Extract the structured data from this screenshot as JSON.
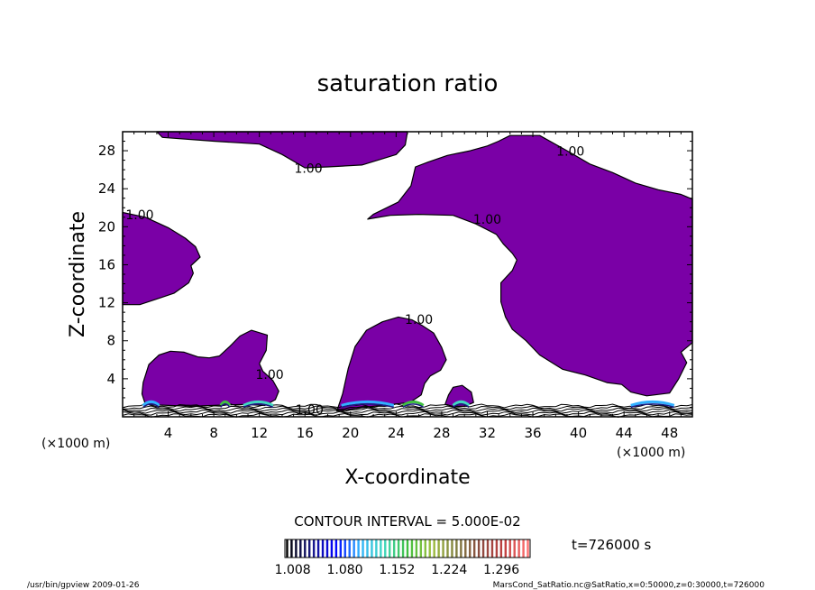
{
  "chart_data": {
    "type": "contour",
    "title": "saturation ratio",
    "xlabel": "X-coordinate",
    "ylabel": "Z-coordinate",
    "x_unit_left": "(×1000 m)",
    "x_unit_right": "(×1000 m)",
    "y_unit": "(×1000 m)",
    "xlim": [
      0,
      50
    ],
    "ylim": [
      0,
      30
    ],
    "x_ticks": [
      4,
      8,
      12,
      16,
      20,
      24,
      28,
      32,
      36,
      40,
      44,
      48
    ],
    "y_ticks": [
      4,
      8,
      12,
      16,
      20,
      24,
      28
    ],
    "contour_interval_text": "CONTOUR INTERVAL = 5.000E-02",
    "fill_color": "#7a00a6",
    "contour_labels": [
      {
        "text": "1.00",
        "x": 16.3,
        "z": 25.7
      },
      {
        "text": "1.00",
        "x": 39.3,
        "z": 27.5
      },
      {
        "text": "1.00",
        "x": 1.5,
        "z": 20.8
      },
      {
        "text": "1.00",
        "x": 32.0,
        "z": 20.3
      },
      {
        "text": "1.00",
        "x": 26.0,
        "z": 9.8
      },
      {
        "text": "1.00",
        "x": 12.9,
        "z": 4.0
      },
      {
        "text": "1.00",
        "x": 16.4,
        "z": 0.3
      }
    ],
    "purple_regions": [
      [
        [
          3,
          30
        ],
        [
          3.5,
          29.4
        ],
        [
          8,
          29
        ],
        [
          12,
          28.7
        ],
        [
          14,
          27.6
        ],
        [
          16,
          26.2
        ],
        [
          18,
          26.3
        ],
        [
          21,
          26.5
        ],
        [
          24,
          27.6
        ],
        [
          24.8,
          28.6
        ],
        [
          25,
          30
        ]
      ],
      [
        [
          0,
          21.5
        ],
        [
          2,
          21
        ],
        [
          4,
          19.9
        ],
        [
          5.5,
          18.8
        ],
        [
          6.4,
          17.9
        ],
        [
          6.8,
          16.8
        ],
        [
          6,
          15.9
        ],
        [
          6.2,
          15.1
        ],
        [
          5.8,
          14.1
        ],
        [
          4.5,
          13
        ],
        [
          3,
          12.4
        ],
        [
          1.5,
          11.8
        ],
        [
          0,
          11.8
        ]
      ],
      [
        [
          34,
          29.6
        ],
        [
          36.6,
          29.6
        ],
        [
          39,
          28
        ],
        [
          41,
          26.6
        ],
        [
          43,
          25.7
        ],
        [
          45,
          24.6
        ],
        [
          47,
          23.9
        ],
        [
          49,
          23.4
        ],
        [
          50,
          22.9
        ],
        [
          50,
          7.8
        ],
        [
          49,
          6.8
        ],
        [
          49.5,
          5.7
        ],
        [
          48.8,
          4
        ],
        [
          48,
          2.5
        ],
        [
          46,
          2.2
        ],
        [
          44.6,
          2.6
        ],
        [
          43.8,
          3.4
        ],
        [
          42.5,
          3.6
        ],
        [
          40.6,
          4.4
        ],
        [
          38.6,
          5
        ],
        [
          36.6,
          6.5
        ],
        [
          35.4,
          8
        ],
        [
          34.2,
          9.2
        ],
        [
          33.6,
          10.5
        ],
        [
          33.2,
          12.1
        ],
        [
          33.2,
          14.1
        ],
        [
          34.2,
          15.4
        ],
        [
          34.6,
          16.5
        ],
        [
          34.2,
          17.2
        ],
        [
          33.4,
          18.2
        ],
        [
          32.8,
          19.2
        ],
        [
          31,
          20.3
        ],
        [
          29,
          21.2
        ],
        [
          26,
          21.3
        ],
        [
          23.5,
          21.2
        ],
        [
          21.5,
          20.8
        ],
        [
          22,
          21.3
        ],
        [
          24.2,
          22.6
        ],
        [
          25.3,
          24.3
        ],
        [
          25.7,
          26.3
        ],
        [
          26.8,
          26.8
        ],
        [
          28.5,
          27.5
        ],
        [
          30.5,
          28
        ],
        [
          32,
          28.5
        ],
        [
          33,
          29
        ],
        [
          34,
          29.6
        ]
      ],
      [
        [
          2,
          1.3
        ],
        [
          1.7,
          2.4
        ],
        [
          1.8,
          3.6
        ],
        [
          2.3,
          5.5
        ],
        [
          3.2,
          6.5
        ],
        [
          4.2,
          6.9
        ],
        [
          5.4,
          6.8
        ],
        [
          6.6,
          6.3
        ],
        [
          7.6,
          6.2
        ],
        [
          8.5,
          6.4
        ],
        [
          9.4,
          7.4
        ],
        [
          10.3,
          8.5
        ],
        [
          11.3,
          9.1
        ],
        [
          12.7,
          8.6
        ],
        [
          12.6,
          7
        ],
        [
          12,
          5.6
        ],
        [
          12.3,
          4.8
        ],
        [
          13.2,
          3.8
        ],
        [
          13.7,
          2.7
        ],
        [
          13.4,
          1.8
        ],
        [
          12.5,
          1.2
        ],
        [
          10.5,
          1.3
        ],
        [
          8,
          1.2
        ],
        [
          6,
          1.1
        ],
        [
          4,
          1.2
        ]
      ],
      [
        [
          18.8,
          0.6
        ],
        [
          19.3,
          2.4
        ],
        [
          19.8,
          5.1
        ],
        [
          20.4,
          7.4
        ],
        [
          21.4,
          9.1
        ],
        [
          22.8,
          10
        ],
        [
          24.2,
          10.5
        ],
        [
          25.4,
          10.2
        ],
        [
          26.3,
          9.6
        ],
        [
          27.3,
          8.8
        ],
        [
          28,
          7.3
        ],
        [
          28.4,
          6
        ],
        [
          27.9,
          4.9
        ],
        [
          27,
          4.3
        ],
        [
          26.5,
          3.5
        ],
        [
          26.2,
          2.3
        ],
        [
          25.2,
          1.5
        ],
        [
          22,
          1.1
        ],
        [
          20,
          0.8
        ]
      ],
      [
        [
          28.3,
          1.3
        ],
        [
          28.6,
          2.3
        ],
        [
          29,
          3.1
        ],
        [
          29.8,
          3.3
        ],
        [
          30.6,
          2.6
        ],
        [
          30.8,
          1.5
        ],
        [
          30,
          1.1
        ],
        [
          29,
          1.1
        ]
      ]
    ],
    "colorbar": {
      "tick_labels": [
        "1.008",
        "1.080",
        "1.152",
        "1.224",
        "1.296"
      ],
      "n_segments": 55,
      "colors": [
        "#000000",
        "#1a1a80",
        "#0000ff",
        "#30b0ff",
        "#40d8c0",
        "#40c040",
        "#a0c040",
        "#808040",
        "#8a4a40",
        "#c04040",
        "#ff7070"
      ]
    },
    "time_label": "t=726000 s",
    "footer_left": "/usr/bin/gpview  2009-01-26",
    "footer_right": "MarsCond_SatRatio.nc@SatRatio,x=0:50000,z=0:30000,t=726000"
  }
}
